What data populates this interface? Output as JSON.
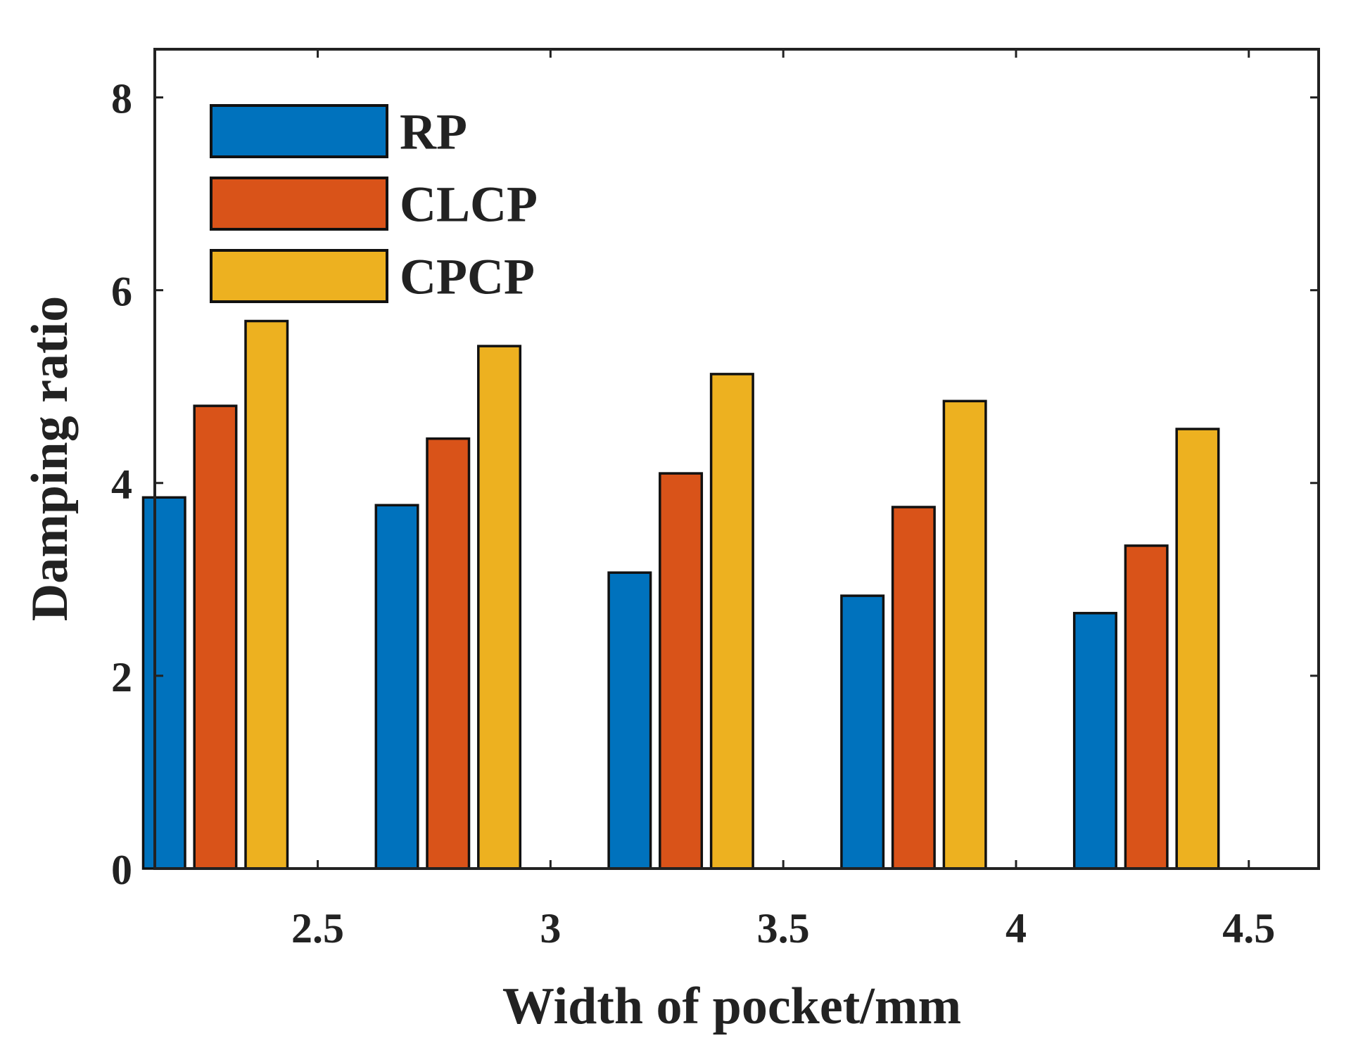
{
  "chart_data": {
    "type": "bar",
    "xlabel": "Width of pocket/mm",
    "ylabel": "Damping ratio",
    "ylim": [
      0,
      8.5
    ],
    "xlim": [
      2.15,
      4.65
    ],
    "yticks": [
      "0",
      "2",
      "4",
      "6",
      "8"
    ],
    "xticks": [
      "2.5",
      "3",
      "3.5",
      "4",
      "4.5"
    ],
    "grid": false,
    "legend_position": "top-left",
    "categories": [
      "2.5",
      "3",
      "3.5",
      "4",
      "4.5"
    ],
    "series": [
      {
        "name": "RP",
        "color": "#0072BD",
        "values": [
          3.85,
          3.77,
          3.07,
          2.83,
          2.65
        ]
      },
      {
        "name": "CLCP",
        "color": "#D95319",
        "values": [
          4.8,
          4.46,
          4.1,
          3.75,
          3.35
        ]
      },
      {
        "name": "CPCP",
        "color": "#EDB120",
        "values": [
          5.68,
          5.42,
          5.13,
          4.85,
          4.56
        ]
      }
    ]
  }
}
